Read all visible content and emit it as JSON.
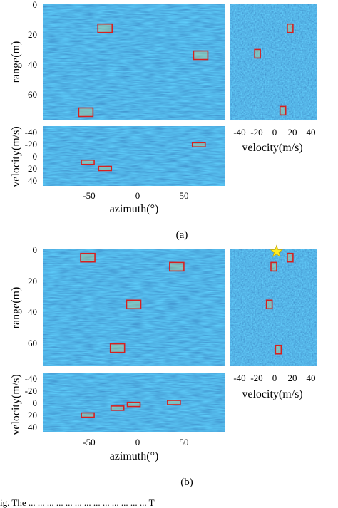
{
  "colors": {
    "background_field": "#2a78d8",
    "box_outline": "#d62020",
    "star_fill": "#ffee22",
    "star_stroke": "#c8a800"
  },
  "figure": {
    "panels": [
      {
        "caption": "(a)",
        "range_azimuth": {
          "ylabel": "range(m)",
          "y_ticks": [
            "0",
            "20",
            "40",
            "60"
          ],
          "x_ticks": [
            "-50",
            "0",
            "50"
          ],
          "xlabel": "azimuth(°)",
          "targets": [
            {
              "azimuth": -30,
              "range": 16
            },
            {
              "azimuth": 70,
              "range": 34
            },
            {
              "azimuth": -50,
              "range": 72
            }
          ]
        },
        "range_velocity": {
          "x_ticks": [
            "-40",
            "-20",
            "0",
            "20",
            "40"
          ],
          "xlabel": "velocity(m/s)",
          "targets": [
            {
              "velocity": 18,
              "range": 16
            },
            {
              "velocity": -18,
              "range": 33
            },
            {
              "velocity": 10,
              "range": 71
            }
          ]
        },
        "velocity_azimuth": {
          "ylabel": "velocity(m/s)",
          "y_ticks": [
            "-40",
            "-20",
            "0",
            "20",
            "40"
          ],
          "targets": [
            {
              "azimuth": 68,
              "velocity": -18
            },
            {
              "azimuth": -48,
              "velocity": 10
            },
            {
              "azimuth": -30,
              "velocity": 20
            }
          ]
        }
      },
      {
        "caption": "(b)",
        "range_azimuth": {
          "ylabel": "range(m)",
          "y_ticks": [
            "0",
            "20",
            "40",
            "60"
          ],
          "x_ticks": [
            "-50",
            "0",
            "50"
          ],
          "xlabel": "azimuth(°)",
          "targets": [
            {
              "azimuth": -48,
              "range": 6
            },
            {
              "azimuth": 45,
              "range": 12
            },
            {
              "azimuth": 0,
              "range": 37
            },
            {
              "azimuth": -17,
              "range": 66
            }
          ]
        },
        "range_velocity": {
          "x_ticks": [
            "-40",
            "-20",
            "0",
            "20",
            "40"
          ],
          "xlabel": "velocity(m/s)",
          "star": {
            "velocity": 3,
            "range": 2
          },
          "targets": [
            {
              "velocity": 18,
              "range": 6
            },
            {
              "velocity": 0,
              "range": 12
            },
            {
              "velocity": -5,
              "range": 37
            },
            {
              "velocity": 5,
              "range": 67
            }
          ]
        },
        "velocity_azimuth": {
          "ylabel": "velocity(m/s)",
          "y_ticks": [
            "-40",
            "-20",
            "0",
            "20",
            "40"
          ],
          "targets": [
            {
              "azimuth": -48,
              "velocity": 20
            },
            {
              "azimuth": -17,
              "velocity": 9
            },
            {
              "azimuth": 0,
              "velocity": 3
            },
            {
              "azimuth": 42,
              "velocity": 0
            }
          ]
        }
      }
    ],
    "trailing_text": "ig.    The ...           ... ... ...  ... ...  ... ... ...  ... ...  ... ...  T"
  }
}
